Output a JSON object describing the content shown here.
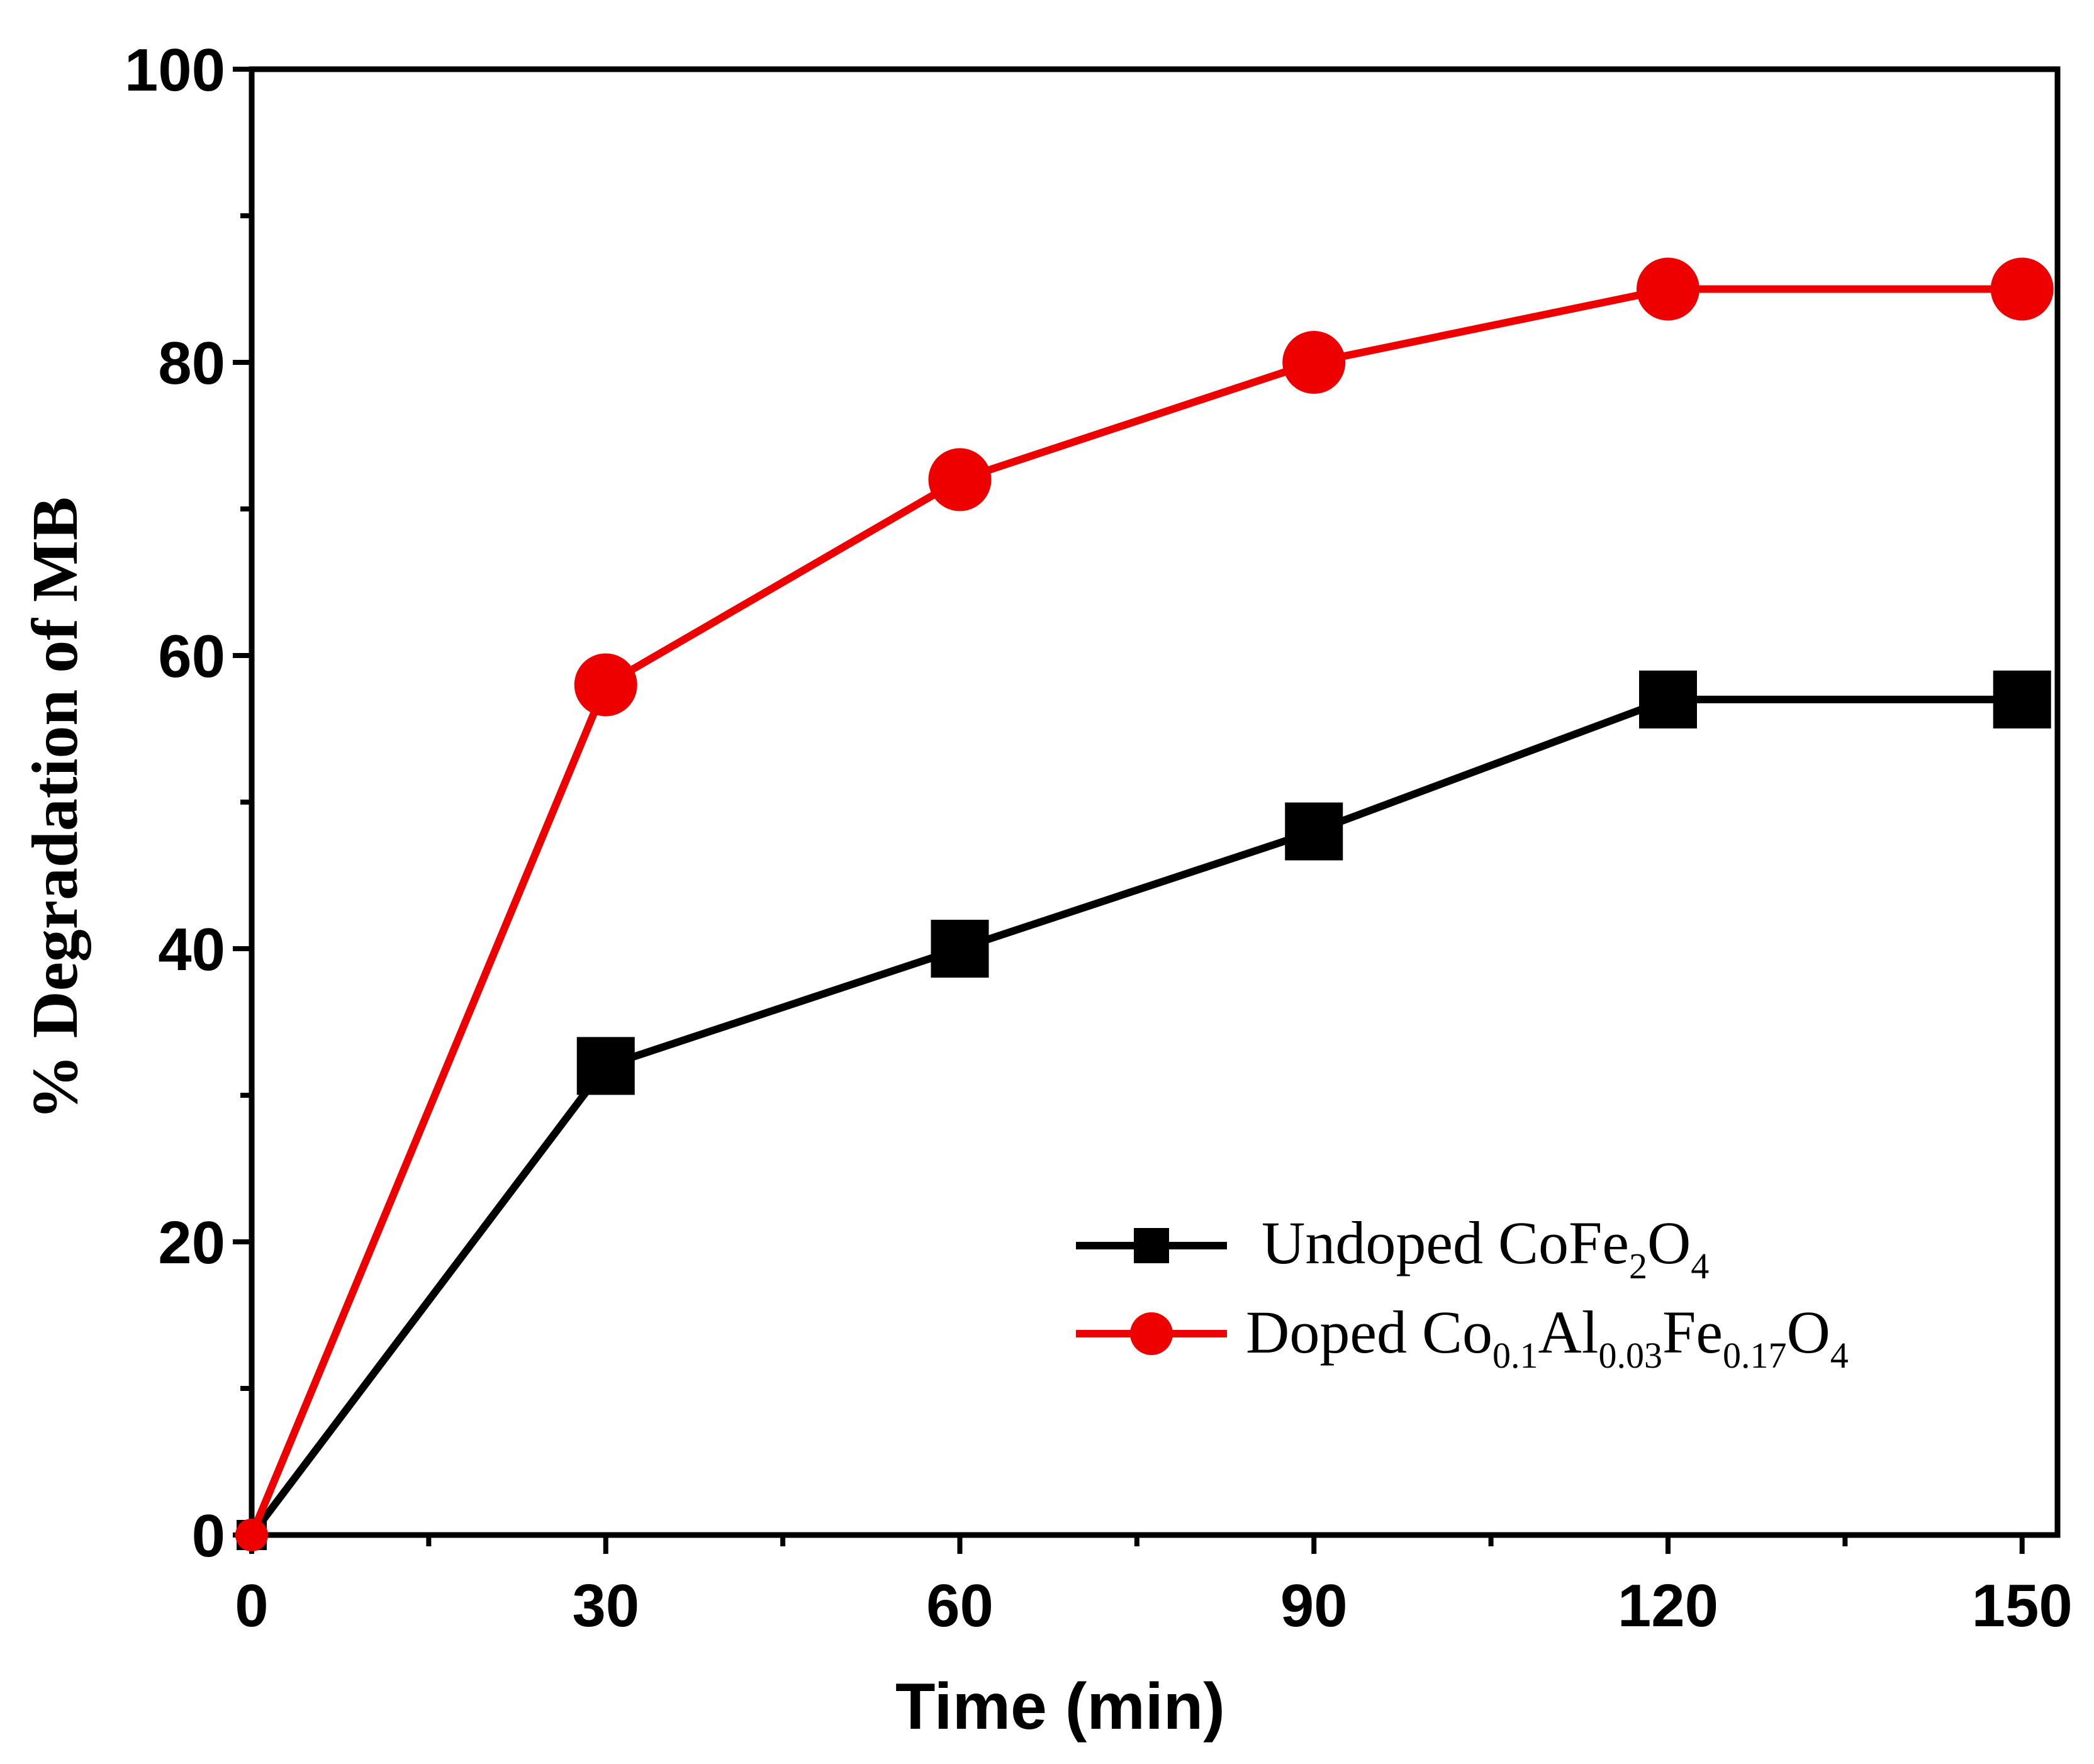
{
  "chart_data": {
    "type": "line",
    "title": "",
    "xlabel": "Time (min)",
    "ylabel": "% Degradation of MB",
    "xlim": [
      0,
      153
    ],
    "ylim": [
      0,
      100
    ],
    "xticks": [
      0,
      30,
      60,
      90,
      120,
      150
    ],
    "yticks": [
      0,
      20,
      40,
      60,
      80,
      100
    ],
    "grid": false,
    "legend_position": "lower-right",
    "series": [
      {
        "name": "Undoped CoFe2O4",
        "legend_parts": {
          "prefix": "Undoped CoFe",
          "sub1": "2",
          "mid1": "O",
          "sub2": "4"
        },
        "color": "#000000",
        "marker": "square",
        "x": [
          0,
          30,
          60,
          90,
          120,
          150
        ],
        "values": [
          0,
          32,
          40,
          48,
          57,
          57
        ]
      },
      {
        "name": "Doped Co0.1Al0.03Fe0.17O4",
        "legend_parts": {
          "prefix": "Doped Co",
          "sub1": "0.1",
          "mid1": "Al",
          "sub2": "0.03",
          "mid2": "Fe",
          "sub3": "0.17",
          "mid3": "O",
          "sub4": "4"
        },
        "color": "#ee0000",
        "marker": "circle",
        "x": [
          0,
          30,
          60,
          90,
          120,
          150
        ],
        "values": [
          0,
          58,
          72,
          80,
          85,
          85
        ]
      }
    ]
  }
}
